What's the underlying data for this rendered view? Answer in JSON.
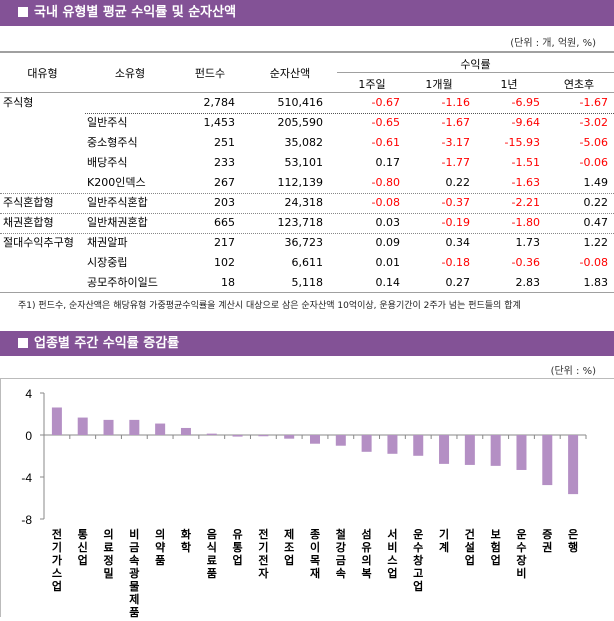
{
  "section1": {
    "title": "국내 유형별 평균 수익률 및 순자산액",
    "unit": "(단위 : 개, 억원, %)"
  },
  "table": {
    "headers": {
      "major": "대유형",
      "minor": "소유형",
      "funds": "펀드수",
      "assets": "순자산액",
      "returns": "수익률",
      "w1": "1주일",
      "m1": "1개월",
      "y1": "1년",
      "ytd": "연초후"
    },
    "rows": [
      {
        "major": "주식형",
        "minor": "",
        "funds": "2,784",
        "assets": "510,416",
        "w1": "-0.67",
        "m1": "-1.16",
        "y1": "-6.95",
        "ytd": "-1.67"
      },
      {
        "major": "",
        "minor": "일반주식",
        "funds": "1,453",
        "assets": "205,590",
        "w1": "-0.65",
        "m1": "-1.67",
        "y1": "-9.64",
        "ytd": "-3.02"
      },
      {
        "major": "",
        "minor": "중소형주식",
        "funds": "251",
        "assets": "35,082",
        "w1": "-0.61",
        "m1": "-3.17",
        "y1": "-15.93",
        "ytd": "-5.06"
      },
      {
        "major": "",
        "minor": "배당주식",
        "funds": "233",
        "assets": "53,101",
        "w1": "0.17",
        "m1": "-1.77",
        "y1": "-1.51",
        "ytd": "-0.06"
      },
      {
        "major": "",
        "minor": "K200인덱스",
        "funds": "267",
        "assets": "112,139",
        "w1": "-0.80",
        "m1": "0.22",
        "y1": "-1.63",
        "ytd": "1.49"
      },
      {
        "major": "주식혼합형",
        "minor": "일반주식혼합",
        "funds": "203",
        "assets": "24,318",
        "w1": "-0.08",
        "m1": "-0.37",
        "y1": "-2.21",
        "ytd": "0.22"
      },
      {
        "major": "채권혼합형",
        "minor": "일반채권혼합",
        "funds": "665",
        "assets": "123,718",
        "w1": "0.03",
        "m1": "-0.19",
        "y1": "-1.80",
        "ytd": "0.47"
      },
      {
        "major": "절대수익추구형",
        "minor": "채권알파",
        "funds": "217",
        "assets": "36,723",
        "w1": "0.09",
        "m1": "0.34",
        "y1": "1.73",
        "ytd": "1.22"
      },
      {
        "major": "",
        "minor": "시장중립",
        "funds": "102",
        "assets": "6,611",
        "w1": "0.01",
        "m1": "-0.18",
        "y1": "-0.36",
        "ytd": "-0.08"
      },
      {
        "major": "",
        "minor": "공모주하이일드",
        "funds": "18",
        "assets": "5,118",
        "w1": "0.14",
        "m1": "0.27",
        "y1": "2.83",
        "ytd": "1.83"
      }
    ],
    "note": "주1) 펀드수, 순자산액은 해당유형 가중평균수익률을 계산시 대상으로 삼은 순자산액 10억이상, 운용기간이 2주가 넘는 펀드들의 합계"
  },
  "section2": {
    "title": "업종별 주간 수익률 증감률",
    "unit": "(단위 : %)"
  },
  "colors": {
    "header": "#835296",
    "bar": "#b48fc4",
    "negative": "#ff0000"
  },
  "chart_data": {
    "type": "bar",
    "categories": [
      "전기가스업",
      "통신업",
      "의료정밀",
      "비금속광물제품",
      "의약품",
      "화학",
      "음식료품",
      "유통업",
      "전기전자",
      "제조업",
      "종이목재",
      "철강금속",
      "섬유의복",
      "서비스업",
      "운수창고업",
      "기계",
      "건설업",
      "보험업",
      "운수장비",
      "증권",
      "은행"
    ],
    "values": [
      2.62,
      1.66,
      1.44,
      1.44,
      1.09,
      0.67,
      0.13,
      -0.15,
      -0.12,
      -0.35,
      -0.83,
      -1.02,
      -1.6,
      -1.79,
      -1.98,
      -2.75,
      -2.85,
      -2.94,
      -3.33,
      -4.77,
      -5.63
    ],
    "ylim": [
      -8,
      4
    ],
    "yticks": [
      "4",
      "0",
      "-4",
      "-8"
    ],
    "grid": false
  }
}
